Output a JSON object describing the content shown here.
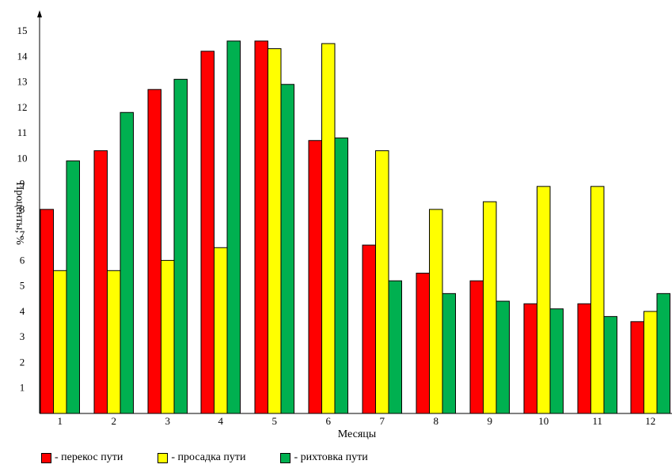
{
  "chart_data": {
    "type": "bar",
    "title": "",
    "xlabel": "Месяцы",
    "ylabel": "Проценты, %",
    "ylim": [
      0,
      15
    ],
    "yticks": [
      1,
      2,
      3,
      4,
      5,
      6,
      7,
      8,
      9,
      10,
      11,
      12,
      13,
      14,
      15
    ],
    "categories": [
      "1",
      "2",
      "3",
      "4",
      "5",
      "6",
      "7",
      "8",
      "9",
      "10",
      "11",
      "12"
    ],
    "grid": false,
    "legend_position": "bottom-left",
    "series": [
      {
        "name": "- перекос пути",
        "color": "#ff0000",
        "values": [
          8.0,
          10.3,
          12.7,
          14.2,
          14.6,
          10.7,
          6.6,
          5.5,
          5.2,
          4.3,
          4.3,
          3.6
        ]
      },
      {
        "name": "- просадка пути",
        "color": "#ffff00",
        "values": [
          5.6,
          5.6,
          6.0,
          6.5,
          14.3,
          14.5,
          10.3,
          8.0,
          8.3,
          8.9,
          8.9,
          4.0
        ]
      },
      {
        "name": "- рихтовка пути",
        "color": "#00b050",
        "values": [
          9.9,
          11.8,
          13.1,
          14.6,
          12.9,
          10.8,
          5.2,
          4.7,
          4.4,
          4.1,
          3.8,
          4.7
        ]
      }
    ]
  }
}
